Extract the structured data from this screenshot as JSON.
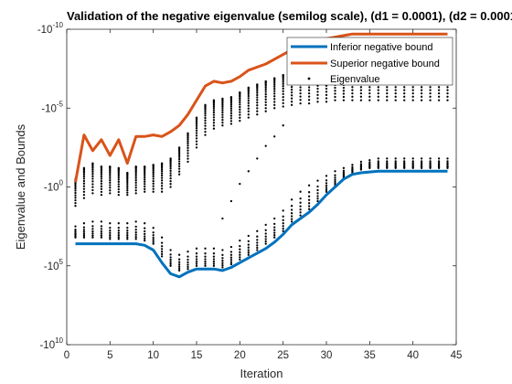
{
  "chart_data": {
    "type": "line",
    "title": "Validation of the negative eigenvalue (semilog scale), (d1 = 0.0001), (d2 = 0.0001",
    "xlabel": "Iteration",
    "ylabel": "Eigenvalue and Bounds",
    "xlim": [
      0,
      45
    ],
    "x_ticks": [
      "0",
      "5",
      "10",
      "15",
      "20",
      "25",
      "30",
      "35",
      "40",
      "45"
    ],
    "y_scale": "symlog (negative values, magnitude on log scale)",
    "y_ticks": [
      {
        "base": "-10",
        "exp": "-10"
      },
      {
        "base": "-10",
        "exp": "-5"
      },
      {
        "base": "-10",
        "exp": "0"
      },
      {
        "base": "-10",
        "exp": "5"
      },
      {
        "base": "-10",
        "exp": "10"
      }
    ],
    "grid": false,
    "legend_position": "top-right",
    "colors": {
      "inferior": "#0072BD",
      "superior": "#D95319",
      "eigen": "#000000"
    },
    "x": [
      1,
      2,
      3,
      4,
      5,
      6,
      7,
      8,
      9,
      10,
      11,
      12,
      13,
      14,
      15,
      16,
      17,
      18,
      19,
      20,
      21,
      22,
      23,
      24,
      25,
      26,
      27,
      28,
      29,
      30,
      31,
      32,
      33,
      34,
      35,
      36,
      37,
      38,
      39,
      40,
      41,
      42,
      43,
      44
    ],
    "series": [
      {
        "name": "Inferior negative bound",
        "log10_abs_values": [
          3.6,
          3.6,
          3.6,
          3.6,
          3.6,
          3.6,
          3.6,
          3.6,
          3.7,
          4.0,
          4.8,
          5.5,
          5.7,
          5.4,
          5.2,
          5.2,
          5.2,
          5.3,
          5.1,
          4.8,
          4.5,
          4.2,
          3.9,
          3.5,
          3.0,
          2.4,
          2.0,
          1.6,
          1.1,
          0.5,
          0.0,
          -0.5,
          -0.8,
          -0.9,
          -0.95,
          -1.0,
          -1.0,
          -1.0,
          -1.0,
          -1.0,
          -1.0,
          -1.0,
          -1.0,
          -1.0
        ]
      },
      {
        "name": "Superior negative bound",
        "log10_abs_values": [
          -0.3,
          -3.3,
          -2.3,
          -3.0,
          -2.0,
          -3.0,
          -1.5,
          -3.2,
          -3.2,
          -3.3,
          -3.2,
          -3.5,
          -3.9,
          -4.6,
          -5.5,
          -6.4,
          -6.7,
          -6.6,
          -6.7,
          -7.0,
          -7.4,
          -7.6,
          -7.8,
          -8.1,
          -8.4,
          -8.7,
          -8.9,
          -9.1,
          -9.3,
          -9.4,
          -9.5,
          -9.6,
          -9.7,
          -9.7,
          -9.7,
          -9.7,
          -9.7,
          -9.7,
          -9.7,
          -9.7,
          -9.7,
          -9.7,
          -9.7,
          -9.7
        ]
      },
      {
        "name": "Eigenvalue",
        "marker": "dot",
        "upper_band_log10_abs": [
          -0.5,
          -1.2,
          -1.5,
          -1.3,
          -1.3,
          -1.2,
          -0.9,
          -1.3,
          -1.3,
          -1.4,
          -1.5,
          -1.8,
          -2.5,
          -3.4,
          -4.4,
          -5.2,
          -5.5,
          -5.6,
          -5.7,
          -6.0,
          -6.3,
          -6.5,
          -6.7,
          -6.9,
          -7.1,
          -7.2,
          -7.4,
          -7.4,
          -7.5,
          -7.5,
          -7.5,
          -7.5,
          -7.6,
          -7.6,
          -7.6,
          -7.6,
          -7.6,
          -7.6,
          -7.6,
          -7.6,
          -7.6,
          -7.6,
          -7.6,
          -7.6
        ],
        "lower_band_log10_abs": [
          3.2,
          3.2,
          3.2,
          3.2,
          3.3,
          3.3,
          3.3,
          3.3,
          3.4,
          3.6,
          4.4,
          5.0,
          5.3,
          5.2,
          5.0,
          5.0,
          5.0,
          5.1,
          4.9,
          4.6,
          4.3,
          4.0,
          3.6,
          3.2,
          2.8,
          2.2,
          1.8,
          1.4,
          0.9,
          0.3,
          -0.1,
          -0.6,
          -0.9,
          -1.1,
          -1.2,
          -1.2,
          -1.2,
          -1.2,
          -1.2,
          -1.2,
          -1.2,
          -1.2,
          -1.2,
          -1.2
        ],
        "upper_cluster_floor_log10_abs": [
          1.2,
          0.7,
          0.4,
          0.5,
          0.4,
          0.5,
          0.5,
          0.4,
          0.3,
          0.3,
          0.3,
          0.0,
          -0.8,
          -1.6,
          -2.5,
          -3.3,
          -3.7,
          -3.9,
          -4.0,
          -4.2,
          -4.4,
          -4.6,
          -4.8,
          -5.0,
          -5.1,
          -5.2,
          -5.3,
          -5.3,
          -5.4,
          -5.4,
          -5.5,
          -5.5,
          -5.5,
          -5.5,
          -5.5,
          -5.5,
          -5.5,
          -5.5,
          -5.5,
          -5.5,
          -5.5,
          -5.5,
          -5.5,
          -5.5
        ],
        "lower_cluster_ceiling_log10_abs": [
          2.5,
          2.3,
          2.2,
          2.2,
          2.3,
          2.3,
          2.3,
          2.2,
          2.3,
          2.6,
          3.2,
          4.0,
          4.3,
          4.1,
          3.9,
          3.9,
          3.9,
          4.0,
          3.8,
          3.4,
          3.1,
          2.8,
          2.4,
          2.0,
          1.5,
          0.8,
          0.3,
          -0.1,
          -0.4,
          -0.7,
          -1.0,
          -1.2,
          -1.4,
          -1.6,
          -1.7,
          -1.8,
          -1.8,
          -1.8,
          -1.8,
          -1.8,
          -1.8,
          -1.8,
          -1.8,
          -1.8
        ],
        "middle_trail": [
          {
            "x": 18,
            "log10_abs": 2.0
          },
          {
            "x": 19,
            "log10_abs": 0.9
          },
          {
            "x": 20,
            "log10_abs": -0.2
          },
          {
            "x": 21,
            "log10_abs": -1.0
          },
          {
            "x": 22,
            "log10_abs": -1.8
          },
          {
            "x": 23,
            "log10_abs": -2.6
          },
          {
            "x": 24,
            "log10_abs": -3.2
          },
          {
            "x": 25,
            "log10_abs": -3.9
          }
        ]
      }
    ]
  }
}
